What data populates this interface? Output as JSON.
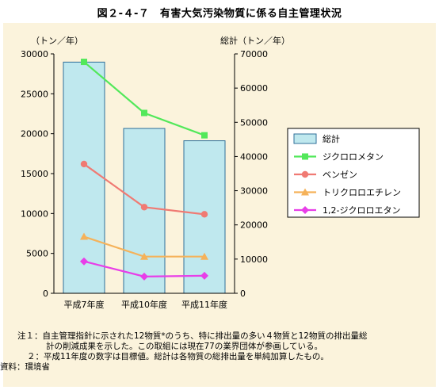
{
  "title": "図２-４-７　有害大気汚染物質に係る自主管理状況",
  "chart_data": {
    "type": "bar+line",
    "categories": [
      "平成7年度",
      "平成10年度",
      "平成11年度"
    ],
    "left_axis": {
      "label": "（トン／年）",
      "ylim": [
        0,
        30000
      ],
      "ticks": [
        "0",
        "5000",
        "10000",
        "15000",
        "20000",
        "25000",
        "30000"
      ]
    },
    "right_axis": {
      "label": "総計（トン／年）",
      "ylim": [
        0,
        70000
      ],
      "ticks": [
        "0",
        "10000",
        "20000",
        "30000",
        "40000",
        "50000",
        "60000",
        "70000"
      ]
    },
    "bars": {
      "name": "総計",
      "axis": "right",
      "color": "#bfe8ee",
      "stroke": "#2f6f9a",
      "values": [
        67600,
        48200,
        44600
      ]
    },
    "series": [
      {
        "name": "ジクロロメタン",
        "axis": "left",
        "color": "#52e85a",
        "marker": "square",
        "values": [
          29000,
          22600,
          19800
        ]
      },
      {
        "name": "ベンゼン",
        "axis": "left",
        "color": "#f07a73",
        "marker": "circle",
        "values": [
          16200,
          10800,
          9900
        ]
      },
      {
        "name": "トリクロロエチレン",
        "axis": "left",
        "color": "#f5b25a",
        "marker": "triangle",
        "values": [
          7100,
          4600,
          4600
        ]
      },
      {
        "name": "1,2-ジクロロエタン",
        "axis": "left",
        "color": "#e83ee8",
        "marker": "diamond",
        "values": [
          4000,
          2100,
          2200
        ]
      }
    ],
    "legend_position": "right"
  },
  "notes": {
    "line1": "注１：自主管理指針に示された12物質*のうち、特に排出量の多い４物質と12物質の排出量総",
    "line2": "計の削減成果を示した。この取組には現在77の業界団体が参画している。",
    "line3": "２：平成11年度の数字は目標値。総計は各物質の総排出量を単純加算したもの。",
    "line4": "資料：環境省"
  }
}
